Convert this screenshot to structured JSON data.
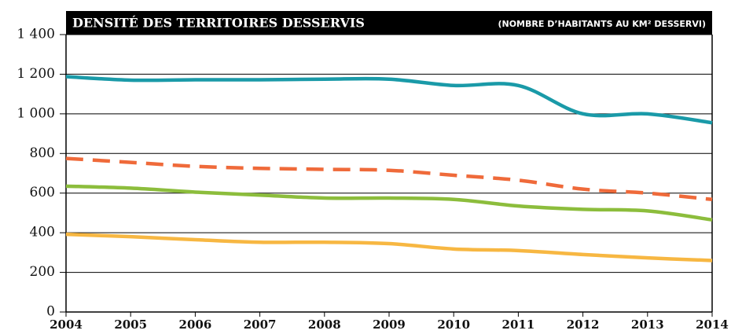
{
  "chart_data": {
    "type": "line",
    "title": "DENSITÉ DES TERRITOIRES DESSERVIS",
    "subtitle": "(NOMBRE D’HABITANTS AU KM² DESSERVI)",
    "x": [
      2004,
      2005,
      2006,
      2007,
      2008,
      2009,
      2010,
      2011,
      2012,
      2013,
      2014
    ],
    "xlim": [
      2004,
      2014
    ],
    "xticks": [
      2004,
      2005,
      2006,
      2007,
      2008,
      2009,
      2010,
      2011,
      2012,
      2013,
      2014
    ],
    "ylim": [
      0,
      1400
    ],
    "yticks": [
      0,
      200,
      400,
      600,
      800,
      {
        "value": 1000,
        "label": "1 000"
      },
      {
        "value": 1200,
        "label": "1 200"
      },
      {
        "value": 1400,
        "label": "1 400"
      }
    ],
    "grid": true,
    "series": [
      {
        "color": "#1a9aa8",
        "dash": false,
        "values": [
          1188,
          1170,
          1172,
          1172,
          1175,
          1175,
          1143,
          1143,
          1000,
          1000,
          955
        ]
      },
      {
        "color": "#ef6a3a",
        "dash": true,
        "values": [
          775,
          755,
          735,
          725,
          720,
          715,
          690,
          665,
          620,
          600,
          568
        ]
      },
      {
        "color": "#8cbd3c",
        "dash": false,
        "values": [
          635,
          625,
          605,
          590,
          575,
          575,
          568,
          535,
          518,
          510,
          465
        ]
      },
      {
        "color": "#f7b742",
        "dash": false,
        "values": [
          392,
          380,
          365,
          352,
          352,
          345,
          318,
          310,
          290,
          273,
          260
        ]
      }
    ]
  }
}
